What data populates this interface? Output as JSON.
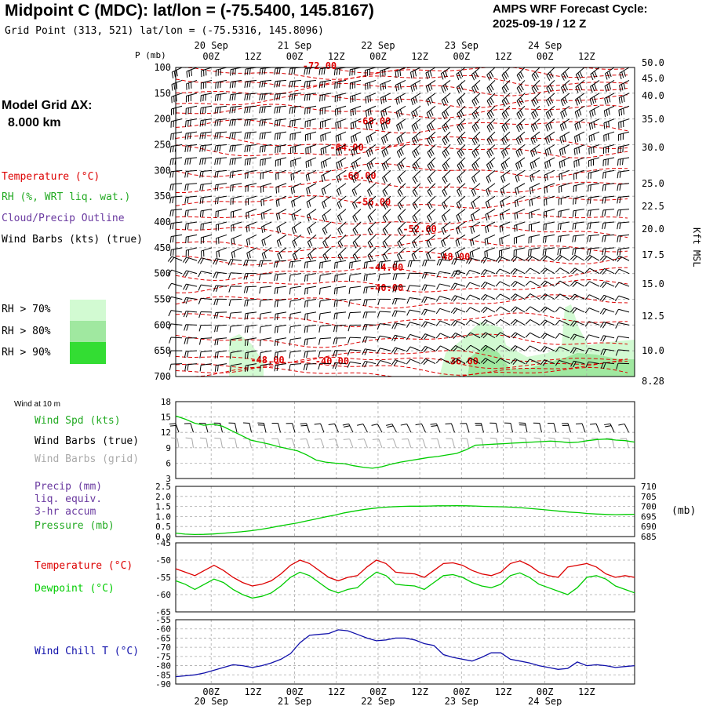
{
  "header": {
    "title": "Midpoint C (MDC):  lat/lon = (-75.5400, 145.8167)",
    "subtitle": "Grid Point (313, 521) lat/lon = (-75.5316, 145.8096)",
    "cycle_label": "AMPS WRF Forecast Cycle:",
    "cycle_value": "2025-09-19 / 12  Z"
  },
  "model_grid": {
    "label": "Model Grid ΔX:",
    "value": "8.000 km"
  },
  "legend": {
    "temperature": "Temperature (°C)",
    "rh": "RH (%, WRT liq. wat.)",
    "cloud": "Cloud/Precip Outline",
    "wind": "Wind Barbs (kts) (true)",
    "rh_levels": [
      {
        "label": "RH > 70%",
        "color": "#d2fad2"
      },
      {
        "label": "RH > 80%",
        "color": "#a0e8a0"
      },
      {
        "label": "RH > 90%",
        "color": "#33dd33"
      }
    ]
  },
  "colors": {
    "temperature": "#dd0000",
    "rh": "#22aa22",
    "dewpoint": "#00cc00",
    "cloud": "#6a3aa0",
    "windchill": "#1010aa",
    "grid": "#aaaaaa",
    "barb": "#000000",
    "barb_grid": "#aaaaaa"
  },
  "time_axis": {
    "ticks": [
      "00Z",
      "12Z",
      "00Z",
      "12Z",
      "00Z",
      "12Z",
      "00Z",
      "12Z",
      "00Z",
      "12Z"
    ],
    "dates": [
      "20 Sep",
      "21 Sep",
      "22 Sep",
      "23 Sep",
      "24 Sep"
    ]
  },
  "panels": {
    "sfc_title": "Wind at 10 m",
    "wind_spd": "Wind Spd (kts)",
    "wind_barbs_true": "Wind Barbs (true)",
    "wind_barbs_grid": "Wind Barbs (grid)",
    "precip": "Precip (mm)",
    "precip_sub1": "liq. equiv.",
    "precip_sub2": "3-hr accum",
    "pressure": "Pressure (mb)",
    "pressure_unit": "(mb)",
    "temperature": "Temperature (°C)",
    "dewpoint": "Dewpoint (°C)",
    "windchill": "Wind Chill T (°C)"
  },
  "chart_data": [
    {
      "type": "line",
      "name": "upper-air-section",
      "y_left_label": "P (mb)",
      "y_right_label": "Kft MSL",
      "pressure_ticks": [
        "100",
        "150",
        "200",
        "250",
        "300",
        "350",
        "400",
        "450",
        "500",
        "550",
        "600",
        "650",
        "700"
      ],
      "kft_ticks": [
        "50.0",
        "45.0",
        "40.0",
        "35.0",
        "30.0",
        "25.0",
        "22.5",
        "20.0",
        "17.5",
        "15.0",
        "12.5",
        "10.0",
        "8.28"
      ],
      "temperature_contours": [
        {
          "label": "-72.00",
          "x": 2.6,
          "p": 97
        },
        {
          "label": "-68.00",
          "x": 3.9,
          "p": 204
        },
        {
          "label": "-64.00",
          "x": 3.25,
          "p": 255
        },
        {
          "label": "-60.00",
          "x": 3.55,
          "p": 310
        },
        {
          "label": "-56.00",
          "x": 3.9,
          "p": 361
        },
        {
          "label": "-52.00",
          "x": 5.0,
          "p": 414
        },
        {
          "label": "-48.00",
          "x": 5.8,
          "p": 468
        },
        {
          "label": "-44.00",
          "x": 4.2,
          "p": 488
        },
        {
          "label": "-40.00",
          "x": 4.2,
          "p": 528
        },
        {
          "label": "-48.00",
          "x": 1.35,
          "p": 668
        },
        {
          "label": "-40.00",
          "x": 2.9,
          "p": 670
        },
        {
          "label": "-36.00",
          "x": 6.0,
          "p": 670
        }
      ],
      "ylim": [
        100,
        700
      ]
    },
    {
      "type": "line",
      "name": "wind-speed-10m",
      "ylim": [
        3,
        18
      ],
      "y_ticks": [
        "18",
        "15",
        "12",
        "9",
        "6",
        "3"
      ],
      "values": [
        15.2,
        14.6,
        13.8,
        13.4,
        13.6,
        13.2,
        12.3,
        11.4,
        10.5,
        10.1,
        9.7,
        9.2,
        8.8,
        8.4,
        7.6,
        6.6,
        6.2,
        6.0,
        5.9,
        5.5,
        5.2,
        5.0,
        5.3,
        5.8,
        6.2,
        6.5,
        6.8,
        7.1,
        7.3,
        7.6,
        7.9,
        8.6,
        9.5,
        9.6,
        9.7,
        9.8,
        9.9,
        10.0,
        10.1,
        10.2,
        10.3,
        10.2,
        10.0,
        10.1,
        10.4,
        10.6,
        10.7,
        10.5,
        10.4,
        10.1
      ]
    },
    {
      "type": "line",
      "name": "pressure",
      "ylim_precip": [
        0,
        2.5
      ],
      "precip_ticks": [
        "2.5",
        "2.0",
        "1.5",
        "1.0",
        "0.5",
        "0.0"
      ],
      "pressure_ticks": [
        "710",
        "705",
        "700",
        "695",
        "690",
        "685"
      ],
      "ylim_pressure": [
        685,
        710
      ],
      "values": [
        686.7,
        686.2,
        686.0,
        686.1,
        686.3,
        686.6,
        687.0,
        687.4,
        687.9,
        688.5,
        689.3,
        690.2,
        691.0,
        691.8,
        692.8,
        693.8,
        694.8,
        695.7,
        696.8,
        697.6,
        698.4,
        699.0,
        699.5,
        699.8,
        700.0,
        700.1,
        700.1,
        700.2,
        700.3,
        700.3,
        700.4,
        700.3,
        700.2,
        700.0,
        699.9,
        699.8,
        699.6,
        699.3,
        698.9,
        698.5,
        698.1,
        697.6,
        697.2,
        696.9,
        696.5,
        696.2,
        696.0,
        695.9,
        696.0,
        696.1
      ]
    },
    {
      "type": "line",
      "name": "temperature-dewpoint",
      "ylim": [
        -65,
        -45
      ],
      "y_ticks": [
        "-45",
        "-50",
        "-55",
        "-60",
        "-65"
      ],
      "series": [
        {
          "name": "Temperature",
          "values": [
            -52.5,
            -53.5,
            -54.5,
            -53,
            -51.5,
            -53,
            -55,
            -56.5,
            -57.5,
            -57,
            -56,
            -54,
            -51.5,
            -50,
            -51,
            -53,
            -55,
            -56,
            -55,
            -54.5,
            -52,
            -50,
            -51,
            -53.5,
            -53.8,
            -54,
            -55,
            -53,
            -51,
            -50.8,
            -51.5,
            -53,
            -54,
            -54.5,
            -53.5,
            -51,
            -50.2,
            -51.5,
            -53.5,
            -54.5,
            -55,
            -52,
            -51.5,
            -51,
            -52,
            -54,
            -55,
            -54.5,
            -55
          ]
        },
        {
          "name": "Dewpoint",
          "values": [
            -56,
            -57,
            -58.5,
            -57,
            -55.5,
            -56.5,
            -58.5,
            -60,
            -61,
            -60.5,
            -59.5,
            -57.5,
            -55,
            -53.5,
            -54.5,
            -56.5,
            -58.5,
            -59.5,
            -58.5,
            -58,
            -55.5,
            -53.5,
            -54.5,
            -57,
            -57.3,
            -57.5,
            -58.5,
            -56.5,
            -54.5,
            -54.2,
            -55,
            -56.5,
            -57.5,
            -58,
            -57,
            -54.5,
            -53.7,
            -55,
            -57,
            -58,
            -59,
            -60,
            -58,
            -55,
            -54.5,
            -55.5,
            -57.5,
            -58.5,
            -59.5
          ]
        }
      ]
    },
    {
      "type": "line",
      "name": "wind-chill",
      "ylim": [
        -90,
        -55
      ],
      "y_ticks": [
        "-55",
        "-60",
        "-65",
        "-70",
        "-75",
        "-80",
        "-85",
        "-90"
      ],
      "values": [
        -86,
        -85.5,
        -85,
        -84,
        -82.5,
        -81,
        -79.5,
        -80,
        -81,
        -80,
        -78.5,
        -76.5,
        -73.5,
        -67.5,
        -63.5,
        -63,
        -62.5,
        -60.5,
        -61,
        -63,
        -65,
        -66.5,
        -66,
        -65,
        -65,
        -66,
        -68,
        -69,
        -74,
        -75.5,
        -76.5,
        -77.5,
        -75.5,
        -73,
        -73,
        -76.5,
        -77.5,
        -78.5,
        -80,
        -81,
        -82,
        -81.5,
        -78,
        -80,
        -79.5,
        -80,
        -81,
        -80.5,
        -80
      ]
    }
  ]
}
